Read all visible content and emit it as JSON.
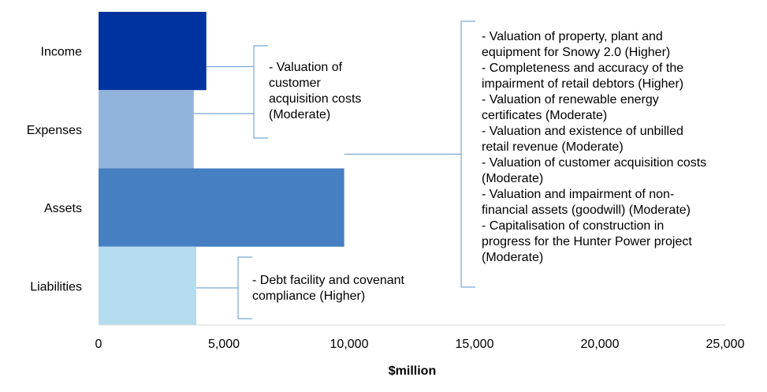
{
  "chart_data": {
    "type": "bar",
    "orientation": "horizontal",
    "title": "",
    "xlabel": "$million",
    "ylabel": "",
    "xlim": [
      0,
      25000
    ],
    "xticks": [
      0,
      5000,
      10000,
      15000,
      20000,
      25000
    ],
    "xtick_labels": [
      "0",
      "5,000",
      "10,000",
      "15,000",
      "20,000",
      "25,000"
    ],
    "grid": false,
    "categories": [
      "Income",
      "Expenses",
      "Assets",
      "Liabilities"
    ],
    "values": [
      4300,
      3800,
      9800,
      3900
    ],
    "colors": [
      "#0033A0",
      "#92B4DC",
      "#467FC2",
      "#B4DCEE"
    ],
    "annotations": [
      {
        "applies_to": [
          "Income",
          "Expenses"
        ],
        "text": "- Valuation of\ncustomer\nacquisition costs\n(Moderate)"
      },
      {
        "applies_to": [
          "Assets"
        ],
        "text": "- Valuation of property, plant and\nequipment for Snowy 2.0 (Higher)\n- Completeness and accuracy of the\nimpairment of retail debtors (Higher)\n- Valuation of renewable energy\ncertificates (Moderate)\n- Valuation and existence of unbilled\nretail revenue (Moderate)\n- Valuation of customer acquisition costs\n(Moderate)\n- Valuation and impairment of non-\nfinancial assets (goodwill) (Moderate)\n- Capitalisation of construction in\nprogress for the Hunter Power project\n(Moderate)"
      },
      {
        "applies_to": [
          "Liabilities"
        ],
        "text": "- Debt facility and covenant\ncompliance (Higher)"
      }
    ]
  }
}
